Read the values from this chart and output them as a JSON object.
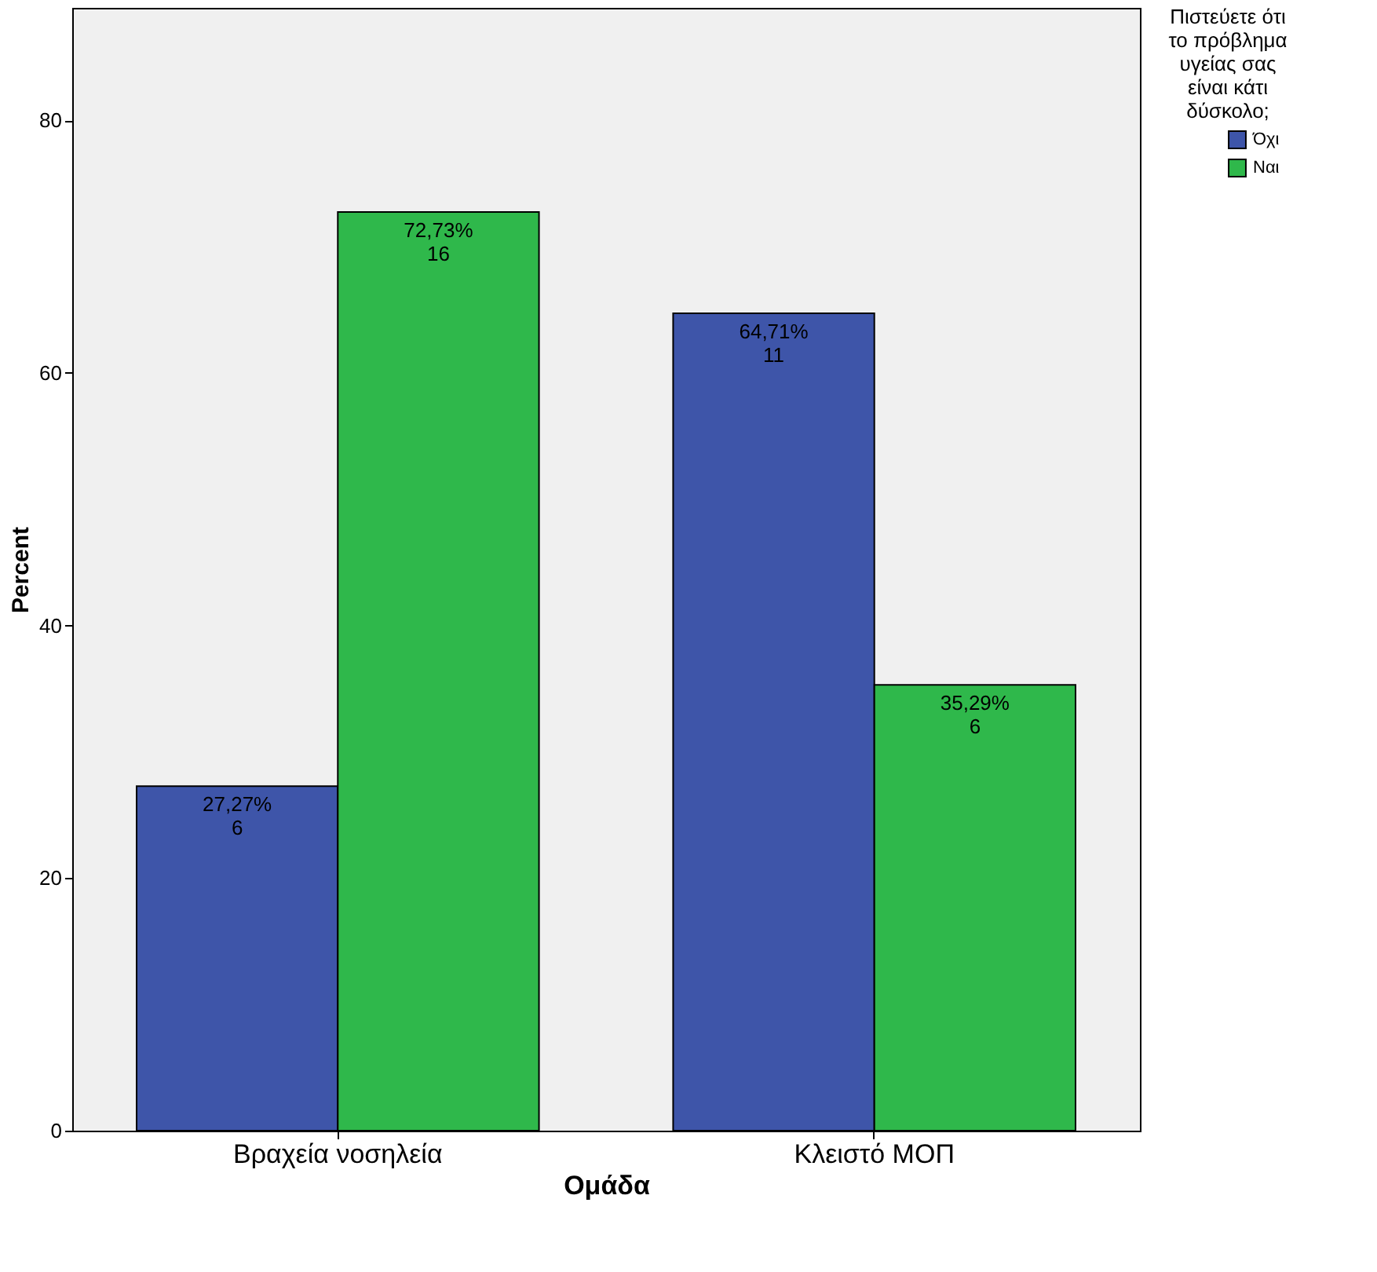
{
  "chart_data": {
    "type": "bar",
    "xlabel": "Ομάδα",
    "ylabel": "Percent",
    "legend_title": "Πιστεύετε ότι το πρόβλημα υγείας σας είναι κάτι δύσκολο;",
    "categories": [
      "Βραχεία νοσηλεία",
      "Κλειστό ΜΟΠ"
    ],
    "series": [
      {
        "name": "Όχι",
        "color": "#3e55a9",
        "values": [
          27.27,
          64.71
        ],
        "value_labels": [
          "27,27%\n6",
          "64,71%\n11"
        ]
      },
      {
        "name": "Ναι",
        "color": "#2fb84b",
        "values": [
          72.73,
          35.29
        ],
        "value_labels": [
          "72,73%\n16",
          "35,29%\n6"
        ]
      }
    ],
    "ylim": [
      0,
      88.9
    ],
    "yticks": [
      0,
      20,
      40,
      60,
      80
    ],
    "grid": false,
    "legend": "top right"
  }
}
